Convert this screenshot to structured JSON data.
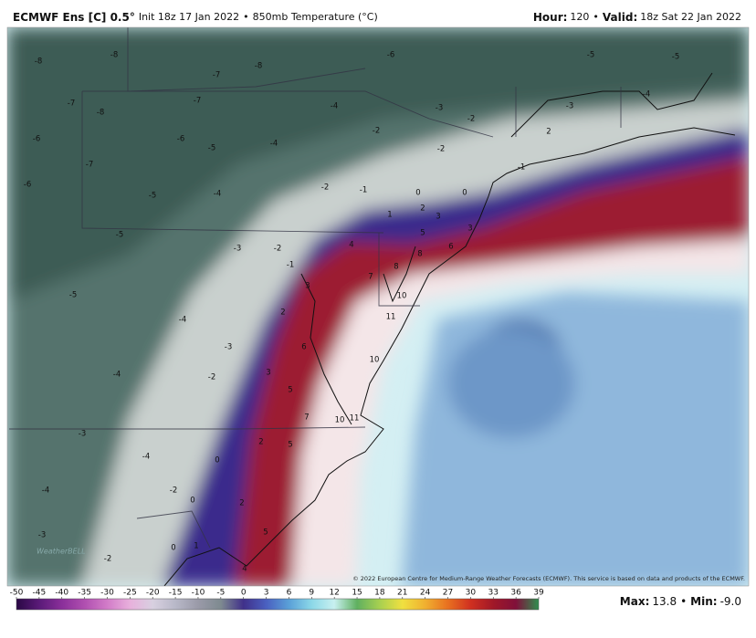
{
  "header": {
    "title": "ECMWF Ens [C] 0.5°",
    "init": "Init 18z 17 Jan 2022",
    "field": "850mb Temperature (°C)",
    "hour_label": "Hour:",
    "hour": "120",
    "valid_label": "Valid:",
    "valid": "18z Sat 22 Jan 2022"
  },
  "map": {
    "labels": [
      -8,
      -8,
      -7,
      -8,
      -6,
      -5,
      -5,
      -7,
      -8,
      -7,
      -4,
      -3,
      -2,
      -3,
      -4,
      -6,
      -7,
      -6,
      -5,
      -4,
      -2,
      -2,
      -1,
      2,
      -6,
      -5,
      -4,
      -2,
      -1,
      0,
      0,
      1,
      2,
      3,
      -5,
      -3,
      -2,
      -1,
      4,
      5,
      6,
      3,
      8,
      8,
      7,
      10,
      11,
      -5,
      -4,
      -3,
      2,
      3,
      6,
      10,
      -4,
      -2,
      3,
      5,
      7,
      10,
      11,
      -3,
      -4,
      0,
      2,
      5,
      -4,
      -2,
      0,
      2,
      5,
      -3,
      -2,
      0,
      1,
      4
    ],
    "credit": "© 2022 European Centre for Medium-Range Weather Forecasts (ECMWF). This service is based on data and products of the ECMWF.",
    "logo": "WeatherBELL"
  },
  "colorbar": {
    "ticks": [
      -50,
      -45,
      -40,
      -35,
      -30,
      -25,
      -20,
      -15,
      -10,
      -5,
      0,
      3,
      6,
      9,
      12,
      15,
      18,
      21,
      24,
      27,
      30,
      33,
      36,
      39
    ],
    "colors": [
      "#2a0845",
      "#5a1a78",
      "#8a2f9a",
      "#b04fb0",
      "#d27cc8",
      "#e8b0dc",
      "#d8d0e0",
      "#b8b8c8",
      "#9a9aa8",
      "#7e8a90",
      "#40308a",
      "#4a60c0",
      "#5aa0d8",
      "#8cd8e8",
      "#c8f0f0",
      "#60b060",
      "#a8d050",
      "#f0e040",
      "#f0b030",
      "#e87020",
      "#d03020",
      "#a01828",
      "#80103a",
      "#2f8f4f"
    ]
  },
  "footer": {
    "max_label": "Max:",
    "max": "13.8",
    "min_label": "Min:",
    "min": "-9.0"
  }
}
